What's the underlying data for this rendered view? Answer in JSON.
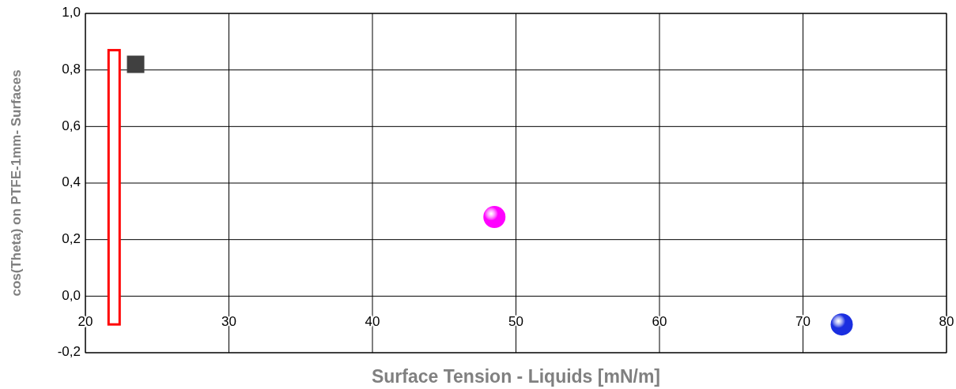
{
  "chart_data": {
    "type": "scatter",
    "xlabel": "Surface Tension - Liquids [mN/m]",
    "ylabel": "cos(Theta) on PTFE-1mm- Surfaces",
    "xlim": [
      20,
      80
    ],
    "xticks": [
      20,
      30,
      40,
      50,
      60,
      70,
      80
    ],
    "ylim": [
      -0.2,
      1.0
    ],
    "yticks": [
      {
        "value": -0.2,
        "label": "-0,2"
      },
      {
        "value": 0,
        "label": "0,0"
      },
      {
        "value": 0.2,
        "label": "0,2"
      },
      {
        "value": 0.4,
        "label": "0,4"
      },
      {
        "value": 0.6,
        "label": "0,6"
      },
      {
        "value": 0.8,
        "label": "0,8"
      },
      {
        "value": 1.0,
        "label": "1,0"
      }
    ],
    "grid": true,
    "series": [
      {
        "type": "bar",
        "color": "#ff0000",
        "x": [
          22
        ],
        "base": [
          -0.1
        ],
        "values": [
          0.97
        ]
      },
      {
        "marker": "square",
        "color": "#404040",
        "x": [
          23.5
        ],
        "values": [
          0.82
        ]
      },
      {
        "marker": "circle",
        "color": "#ff00ff",
        "x": [
          48.5
        ],
        "values": [
          0.28
        ]
      },
      {
        "marker": "circle",
        "color": "#1a2ee0",
        "x": [
          72.7
        ],
        "values": [
          -0.1
        ]
      }
    ]
  }
}
